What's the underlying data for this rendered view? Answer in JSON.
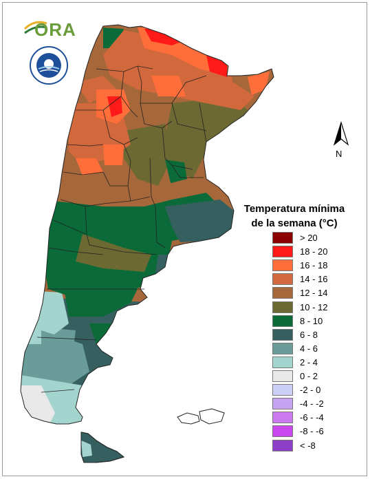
{
  "logo": {
    "text": "ORA",
    "seal_icon": "smn-seal-icon"
  },
  "north_arrow": {
    "label": "N",
    "icon": "north-arrow-icon"
  },
  "legend": {
    "title_line1": "Temperatura mínima",
    "title_line2": "de la semana (°C)",
    "classes": [
      {
        "label": "> 20",
        "color": "#8B0000"
      },
      {
        "label": "18 - 20",
        "color": "#FF1A1A"
      },
      {
        "label": "16 - 18",
        "color": "#FF6E3A"
      },
      {
        "label": "14 - 16",
        "color": "#D2693C"
      },
      {
        "label": "12 - 14",
        "color": "#A6673A"
      },
      {
        "label": "10 - 12",
        "color": "#6C6A32"
      },
      {
        "label": "8 - 10",
        "color": "#0A6A38"
      },
      {
        "label": "6 - 8",
        "color": "#366060"
      },
      {
        "label": "4 - 6",
        "color": "#6A9C9A"
      },
      {
        "label": "2 - 4",
        "color": "#A4D4CE"
      },
      {
        "label": "0 - 2",
        "color": "#E8E8E8"
      },
      {
        "label": "-2 - 0",
        "color": "#CCD0F8"
      },
      {
        "label": "-4 - -2",
        "color": "#C7A4F2"
      },
      {
        "label": "-6 - -4",
        "color": "#CB7AF0"
      },
      {
        "label": "-8 - -6",
        "color": "#C848EE"
      },
      {
        "label": "< -8",
        "color": "#8E3FC8"
      }
    ]
  }
}
